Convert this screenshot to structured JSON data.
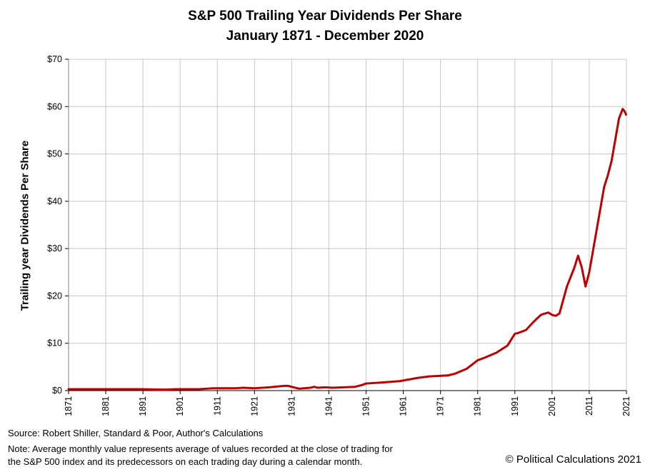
{
  "chart_data": {
    "type": "line",
    "title": "S&P 500 Trailing Year Dividends Per Share",
    "subtitle": "January 1871 - December 2020",
    "ylabel": "Trailing year Dividends Per Share",
    "xlabel": "",
    "xlim": [
      1871,
      2021
    ],
    "ylim": [
      0,
      70
    ],
    "x_ticks": [
      "1871",
      "1881",
      "1891",
      "1901",
      "1911",
      "1921",
      "1931",
      "1941",
      "1951",
      "1961",
      "1971",
      "1981",
      "1991",
      "2001",
      "2011",
      "2021"
    ],
    "y_ticks": [
      "$0",
      "$10",
      "$20",
      "$30",
      "$40",
      "$50",
      "$60",
      "$70"
    ],
    "grid": true,
    "legend": "none",
    "series": [
      {
        "color": "#c00000",
        "x": [
          1871,
          1880,
          1890,
          1897,
          1900,
          1906,
          1910,
          1916,
          1918,
          1921,
          1925,
          1929,
          1930,
          1932,
          1933,
          1936,
          1937,
          1938,
          1940,
          1942,
          1945,
          1948,
          1950,
          1951,
          1955,
          1960,
          1965,
          1968,
          1973,
          1975,
          1978,
          1981,
          1983,
          1986,
          1989,
          1991,
          1992,
          1994,
          1996,
          1998,
          2000,
          2001,
          2002,
          2003,
          2005,
          2007,
          2008,
          2009,
          2010,
          2011,
          2013,
          2015,
          2016,
          2017,
          2018,
          2019,
          2020,
          2020.5,
          2020.9
        ],
        "y": [
          0.3,
          0.3,
          0.3,
          0.2,
          0.3,
          0.3,
          0.5,
          0.5,
          0.6,
          0.5,
          0.7,
          1.0,
          1.0,
          0.6,
          0.4,
          0.6,
          0.8,
          0.6,
          0.7,
          0.6,
          0.7,
          0.8,
          1.2,
          1.5,
          1.7,
          2.0,
          2.7,
          3.0,
          3.2,
          3.6,
          4.6,
          6.4,
          7.0,
          8.0,
          9.5,
          12.0,
          12.2,
          12.8,
          14.5,
          16.0,
          16.5,
          16.0,
          15.8,
          16.3,
          22.0,
          26.0,
          28.5,
          26.0,
          22.0,
          25.0,
          34.0,
          43.0,
          45.5,
          48.5,
          53.0,
          57.5,
          59.5,
          59.0,
          58.3
        ]
      }
    ]
  },
  "footer": {
    "source": "Source: Robert Shiller, Standard & Poor, Author's Calculations",
    "note_line1": "Note: Average monthly value represents average of values recorded at the close of trading for",
    "note_line2": "the S&P 500 index and its predecessors on each trading day during a calendar month.",
    "copyright": "© Political Calculations 2021"
  }
}
